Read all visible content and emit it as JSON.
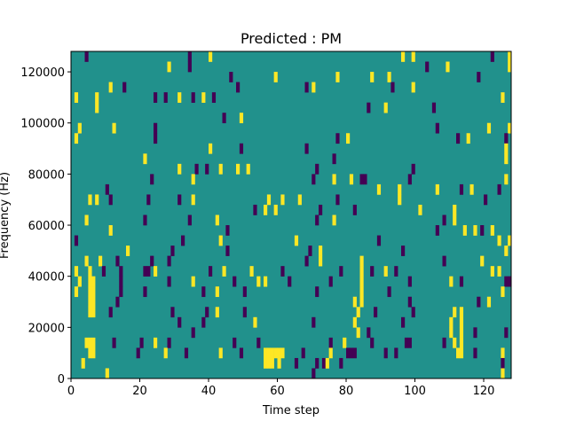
{
  "chart_data": {
    "type": "heatmap",
    "title": "Predicted : PM",
    "xlabel": "Time step",
    "ylabel": "Frequency (Hz)",
    "xlim": [
      0,
      128
    ],
    "ylim": [
      0,
      128000
    ],
    "n_time_steps": 128,
    "n_freq_bins": 32,
    "bin_hz": 4000,
    "xticks": [
      0,
      20,
      40,
      60,
      80,
      100,
      120
    ],
    "yticks": [
      0,
      20000,
      40000,
      60000,
      80000,
      100000,
      120000
    ],
    "colormap": {
      "low": "#440154",
      "mid": "#21918c",
      "high": "#fde725"
    },
    "background_value": 0.5,
    "grid": false,
    "rows": [
      {
        "bin": 31,
        "purple": [
          4,
          34,
          122
        ],
        "yellow": [
          40,
          96,
          99,
          127
        ]
      },
      {
        "bin": 30,
        "purple": [
          34,
          103
        ],
        "yellow": [
          28,
          109,
          127
        ]
      },
      {
        "bin": 29,
        "purple": [
          46,
          118
        ],
        "yellow": [
          59,
          77,
          87,
          92
        ]
      },
      {
        "bin": 28,
        "purple": [
          15,
          48,
          68,
          93
        ],
        "yellow": [
          11,
          70,
          99
        ]
      },
      {
        "bin": 27,
        "purple": [
          24,
          27,
          35,
          41
        ],
        "yellow": [
          1,
          7,
          31,
          38,
          125
        ]
      },
      {
        "bin": 26,
        "purple": [
          86,
          105
        ],
        "yellow": [
          7,
          91
        ]
      },
      {
        "bin": 25,
        "purple": [
          44
        ],
        "yellow": [
          49
        ]
      },
      {
        "bin": 24,
        "purple": [
          24,
          106
        ],
        "yellow": [
          2,
          12,
          121,
          127
        ]
      },
      {
        "bin": 23,
        "purple": [
          24,
          77,
          112,
          126
        ],
        "yellow": [
          1,
          80,
          115
        ]
      },
      {
        "bin": 22,
        "purple": [
          49,
          68
        ],
        "yellow": [
          40,
          126
        ]
      },
      {
        "bin": 21,
        "purple": [
          76
        ],
        "yellow": [
          21,
          126
        ]
      },
      {
        "bin": 20,
        "purple": [
          36,
          39,
          71,
          99
        ],
        "yellow": [
          31,
          43,
          48,
          51
        ]
      },
      {
        "bin": 19,
        "purple": [
          23,
          70,
          84,
          85,
          98
        ],
        "yellow": [
          35,
          76,
          81,
          126
        ]
      },
      {
        "bin": 18,
        "purple": [
          10,
          113,
          124
        ],
        "yellow": [
          89,
          95,
          106,
          116
        ]
      },
      {
        "bin": 17,
        "purple": [
          11,
          22,
          31,
          77,
          120
        ],
        "yellow": [
          5,
          7,
          35,
          57,
          61,
          66,
          95
        ]
      },
      {
        "bin": 16,
        "purple": [
          53,
          72,
          82
        ],
        "yellow": [
          56,
          59,
          101,
          111
        ]
      },
      {
        "bin": 15,
        "purple": [
          21,
          34,
          71,
          108
        ],
        "yellow": [
          4,
          42,
          76,
          111
        ]
      },
      {
        "bin": 14,
        "purple": [
          45,
          106,
          119
        ],
        "yellow": [
          11,
          114,
          117,
          122
        ]
      },
      {
        "bin": 13,
        "purple": [
          1,
          32,
          89
        ],
        "yellow": [
          43,
          65,
          124,
          127
        ]
      },
      {
        "bin": 12,
        "purple": [
          29,
          45,
          69,
          96
        ],
        "yellow": [
          16,
          72,
          126
        ]
      },
      {
        "bin": 11,
        "purple": [
          13,
          23,
          28,
          68,
          108
        ],
        "yellow": [
          4,
          8,
          72,
          84,
          119
        ]
      },
      {
        "bin": 10,
        "purple": [
          9,
          14,
          21,
          22,
          40,
          61,
          78,
          87,
          94
        ],
        "yellow": [
          1,
          5,
          24,
          44,
          52,
          84,
          91,
          122,
          124
        ]
      },
      {
        "bin": 9,
        "purple": [
          14,
          28,
          47,
          63,
          75,
          98,
          113,
          126,
          127
        ],
        "yellow": [
          2,
          5,
          6,
          35,
          54,
          56,
          84,
          110
        ]
      },
      {
        "bin": 8,
        "purple": [
          14,
          21,
          38,
          50,
          71,
          92
        ],
        "yellow": [
          1,
          5,
          6,
          42,
          84,
          125
        ]
      },
      {
        "bin": 7,
        "purple": [
          13,
          98,
          118
        ],
        "yellow": [
          5,
          6,
          82,
          84,
          121
        ]
      },
      {
        "bin": 6,
        "purple": [
          11,
          29,
          39,
          50,
          88,
          99
        ],
        "yellow": [
          5,
          6,
          42,
          83,
          111,
          113
        ]
      },
      {
        "bin": 5,
        "purple": [
          31,
          38,
          70,
          96
        ],
        "yellow": [
          53,
          82,
          110,
          113
        ]
      },
      {
        "bin": 4,
        "purple": [
          35,
          86,
          117,
          126
        ],
        "yellow": [
          83,
          110,
          113
        ]
      },
      {
        "bin": 3,
        "purple": [
          12,
          20,
          28,
          47,
          54,
          75,
          87,
          97,
          98,
          108
        ],
        "yellow": [
          4,
          5,
          6,
          24,
          79,
          111,
          113
        ]
      },
      {
        "bin": 2,
        "purple": [
          19,
          33,
          49,
          67,
          80,
          81,
          82,
          91,
          94,
          117
        ],
        "yellow": [
          5,
          6,
          27,
          43,
          56,
          57,
          58,
          59,
          60,
          61,
          75,
          112,
          113,
          125
        ]
      },
      {
        "bin": 1,
        "purple": [
          65,
          71,
          73,
          78,
          125
        ],
        "yellow": [
          3,
          56,
          57,
          58,
          60,
          74
        ]
      },
      {
        "bin": 0,
        "purple": [
          70
        ],
        "yellow": [
          10,
          125
        ]
      }
    ]
  }
}
